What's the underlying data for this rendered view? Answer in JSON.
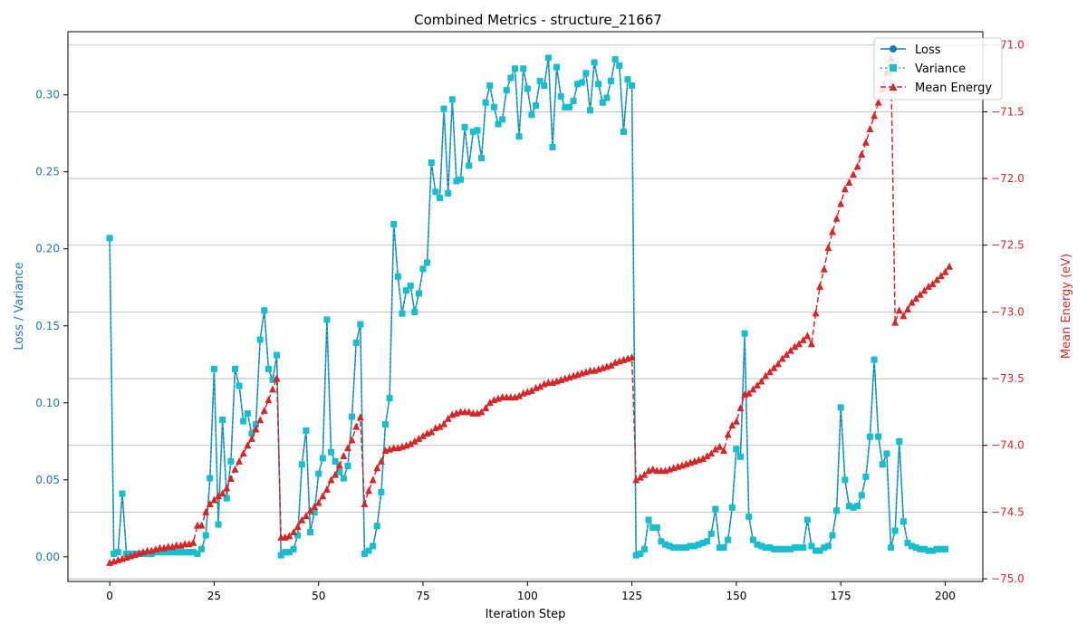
{
  "chart_data": {
    "type": "line",
    "title": "Combined Metrics - structure_21667",
    "xlabel": "Iteration Step",
    "ylabel_left": "Loss / Variance",
    "ylabel_right": "Mean Energy (eV)",
    "xlim": [
      -10,
      209
    ],
    "ylim_left": [
      -0.016,
      0.341
    ],
    "ylim_right": [
      -75.02,
      -70.9
    ],
    "x_ticks": [
      "0",
      "25",
      "50",
      "75",
      "100",
      "125",
      "150",
      "175",
      "200"
    ],
    "y_ticks_left": [
      "0.00",
      "0.05",
      "0.10",
      "0.15",
      "0.20",
      "0.25",
      "0.30"
    ],
    "y_ticks_right": [
      "−75.0",
      "−74.5",
      "−74.0",
      "−73.5",
      "−73.0",
      "−72.5",
      "−72.0",
      "−71.5",
      "−71.0"
    ],
    "grid": "horizontal (right axis)",
    "legend_position": "top-right",
    "colors": {
      "loss": "#1f77b4",
      "variance": "#17becf",
      "energy": "#d62728",
      "left_axis_text": "#1f77b4",
      "right_axis_text": "#d62728"
    },
    "series": [
      {
        "name": "Loss",
        "axis": "left",
        "style": "solid-circle",
        "values": [
          0.207,
          0.002,
          0.003,
          0.041,
          0.002,
          0.002,
          0.002,
          0.002,
          0.002,
          0.002,
          0.002,
          0.003,
          0.003,
          0.003,
          0.003,
          0.003,
          0.003,
          0.003,
          0.003,
          0.003,
          0.003,
          0.002,
          0.005,
          0.014,
          0.051,
          0.122,
          0.021,
          0.089,
          0.038,
          0.062,
          0.122,
          0.111,
          0.088,
          0.093,
          0.08,
          0.086,
          0.141,
          0.16,
          0.122,
          0.115,
          0.131,
          0.001,
          0.003,
          0.003,
          0.005,
          0.014,
          0.06,
          0.082,
          0.016,
          0.029,
          0.054,
          0.064,
          0.154,
          0.068,
          0.062,
          0.055,
          0.051,
          0.059,
          0.091,
          0.139,
          0.151,
          0.002,
          0.004,
          0.007,
          0.02,
          0.042,
          0.086,
          0.103,
          0.216,
          0.182,
          0.158,
          0.173,
          0.176,
          0.159,
          0.171,
          0.187,
          0.191,
          0.256,
          0.237,
          0.233,
          0.291,
          0.236,
          0.297,
          0.244,
          0.245,
          0.279,
          0.254,
          0.276,
          0.277,
          0.259,
          0.295,
          0.306,
          0.292,
          0.281,
          0.284,
          0.303,
          0.311,
          0.317,
          0.273,
          0.317,
          0.304,
          0.287,
          0.293,
          0.309,
          0.306,
          0.324,
          0.266,
          0.318,
          0.299,
          0.292,
          0.292,
          0.296,
          0.307,
          0.308,
          0.314,
          0.29,
          0.321,
          0.307,
          0.295,
          0.298,
          0.309,
          0.323,
          0.319,
          0.276,
          0.31,
          0.306,
          0.001,
          0.002,
          0.005,
          0.024,
          0.019,
          0.019,
          0.01,
          0.008,
          0.007,
          0.006,
          0.006,
          0.006,
          0.006,
          0.007,
          0.007,
          0.008,
          0.009,
          0.01,
          0.015,
          0.031,
          0.006,
          0.006,
          0.011,
          0.032,
          0.07,
          0.065,
          0.145,
          0.026,
          0.011,
          0.008,
          0.007,
          0.006,
          0.006,
          0.005,
          0.005,
          0.005,
          0.005,
          0.005,
          0.006,
          0.006,
          0.006,
          0.024,
          0.007,
          0.004,
          0.004,
          0.006,
          0.007,
          0.014,
          0.03,
          0.097,
          0.05,
          0.033,
          0.032,
          0.033,
          0.04,
          0.052,
          0.078,
          0.128,
          0.078,
          0.06,
          0.067,
          0.006,
          0.017,
          0.075,
          0.023,
          0.009,
          0.007,
          0.006,
          0.005,
          0.005,
          0.004,
          0.004,
          0.005,
          0.005,
          0.005
        ]
      },
      {
        "name": "Variance",
        "axis": "left",
        "style": "dotted-square",
        "values": [
          0.207,
          0.002,
          0.003,
          0.041,
          0.002,
          0.002,
          0.002,
          0.002,
          0.002,
          0.002,
          0.002,
          0.003,
          0.003,
          0.003,
          0.003,
          0.003,
          0.003,
          0.003,
          0.003,
          0.003,
          0.003,
          0.002,
          0.005,
          0.014,
          0.051,
          0.122,
          0.021,
          0.089,
          0.038,
          0.062,
          0.122,
          0.111,
          0.088,
          0.093,
          0.08,
          0.086,
          0.141,
          0.16,
          0.122,
          0.115,
          0.131,
          0.001,
          0.003,
          0.003,
          0.005,
          0.014,
          0.06,
          0.082,
          0.016,
          0.029,
          0.054,
          0.064,
          0.154,
          0.068,
          0.062,
          0.055,
          0.051,
          0.059,
          0.091,
          0.139,
          0.151,
          0.002,
          0.004,
          0.007,
          0.02,
          0.042,
          0.086,
          0.103,
          0.216,
          0.182,
          0.158,
          0.173,
          0.176,
          0.159,
          0.171,
          0.187,
          0.191,
          0.256,
          0.237,
          0.233,
          0.291,
          0.236,
          0.297,
          0.244,
          0.245,
          0.279,
          0.254,
          0.276,
          0.277,
          0.259,
          0.295,
          0.306,
          0.292,
          0.281,
          0.284,
          0.303,
          0.311,
          0.317,
          0.273,
          0.317,
          0.304,
          0.287,
          0.293,
          0.309,
          0.306,
          0.324,
          0.266,
          0.318,
          0.299,
          0.292,
          0.292,
          0.296,
          0.307,
          0.308,
          0.314,
          0.29,
          0.321,
          0.307,
          0.295,
          0.298,
          0.309,
          0.323,
          0.319,
          0.276,
          0.31,
          0.306,
          0.001,
          0.002,
          0.005,
          0.024,
          0.019,
          0.019,
          0.01,
          0.008,
          0.007,
          0.006,
          0.006,
          0.006,
          0.006,
          0.007,
          0.007,
          0.008,
          0.009,
          0.01,
          0.015,
          0.031,
          0.006,
          0.006,
          0.011,
          0.032,
          0.07,
          0.065,
          0.145,
          0.026,
          0.011,
          0.008,
          0.007,
          0.006,
          0.006,
          0.005,
          0.005,
          0.005,
          0.005,
          0.005,
          0.006,
          0.006,
          0.006,
          0.024,
          0.007,
          0.004,
          0.004,
          0.006,
          0.007,
          0.014,
          0.03,
          0.097,
          0.05,
          0.033,
          0.032,
          0.033,
          0.04,
          0.052,
          0.078,
          0.128,
          0.078,
          0.06,
          0.067,
          0.006,
          0.017,
          0.075,
          0.023,
          0.009,
          0.007,
          0.006,
          0.005,
          0.005,
          0.004,
          0.004,
          0.005,
          0.005,
          0.005
        ]
      },
      {
        "name": "Mean Energy",
        "axis": "right",
        "style": "dashed-triangle",
        "values": [
          -74.88,
          -74.87,
          -74.86,
          -74.85,
          -74.84,
          -74.83,
          -74.82,
          -74.81,
          -74.8,
          -74.79,
          -74.79,
          -74.78,
          -74.77,
          -74.77,
          -74.76,
          -74.76,
          -74.75,
          -74.75,
          -74.74,
          -74.74,
          -74.73,
          -74.6,
          -74.6,
          -74.5,
          -74.44,
          -74.41,
          -74.38,
          -74.36,
          -74.32,
          -74.25,
          -74.18,
          -74.12,
          -74.06,
          -74.0,
          -73.95,
          -73.88,
          -73.81,
          -73.74,
          -73.66,
          -73.58,
          -73.5,
          -74.69,
          -74.69,
          -74.68,
          -74.65,
          -74.61,
          -74.56,
          -74.53,
          -74.49,
          -74.46,
          -74.43,
          -74.38,
          -74.33,
          -74.26,
          -74.22,
          -74.15,
          -74.08,
          -74.02,
          -73.96,
          -73.86,
          -73.79,
          -74.44,
          -74.34,
          -74.26,
          -74.17,
          -74.12,
          -74.04,
          -74.03,
          -74.02,
          -74.02,
          -74.01,
          -74.0,
          -73.99,
          -73.97,
          -73.95,
          -73.93,
          -73.91,
          -73.9,
          -73.87,
          -73.86,
          -73.84,
          -73.8,
          -73.77,
          -73.76,
          -73.75,
          -73.75,
          -73.75,
          -73.76,
          -73.76,
          -73.75,
          -73.72,
          -73.68,
          -73.66,
          -73.65,
          -73.64,
          -73.64,
          -73.64,
          -73.64,
          -73.63,
          -73.61,
          -73.6,
          -73.59,
          -73.57,
          -73.56,
          -73.54,
          -73.53,
          -73.53,
          -73.52,
          -73.51,
          -73.5,
          -73.49,
          -73.48,
          -73.47,
          -73.46,
          -73.45,
          -73.44,
          -73.44,
          -73.43,
          -73.42,
          -73.41,
          -73.4,
          -73.38,
          -73.37,
          -73.36,
          -73.35,
          -73.34,
          -74.26,
          -74.24,
          -74.22,
          -74.19,
          -74.18,
          -74.19,
          -74.19,
          -74.19,
          -74.18,
          -74.17,
          -74.16,
          -74.15,
          -74.14,
          -74.13,
          -74.12,
          -74.11,
          -74.1,
          -74.08,
          -74.06,
          -74.03,
          -74.01,
          -74.04,
          -73.92,
          -73.85,
          -73.82,
          -73.72,
          -73.62,
          -73.61,
          -73.58,
          -73.55,
          -73.52,
          -73.48,
          -73.45,
          -73.42,
          -73.39,
          -73.35,
          -73.32,
          -73.29,
          -73.26,
          -73.24,
          -73.21,
          -73.18,
          -73.24,
          -73.01,
          -72.81,
          -72.68,
          -72.52,
          -72.4,
          -72.3,
          -72.19,
          -72.08,
          -72.03,
          -71.97,
          -71.91,
          -71.82,
          -71.73,
          -71.63,
          -71.53,
          -71.43,
          -71.33,
          -71.2,
          -71.1,
          -73.08,
          -72.99,
          -73.03,
          -72.98,
          -72.93,
          -72.9,
          -72.87,
          -72.84,
          -72.81,
          -72.79,
          -72.76,
          -72.73,
          -72.7,
          -72.66
        ]
      }
    ]
  }
}
